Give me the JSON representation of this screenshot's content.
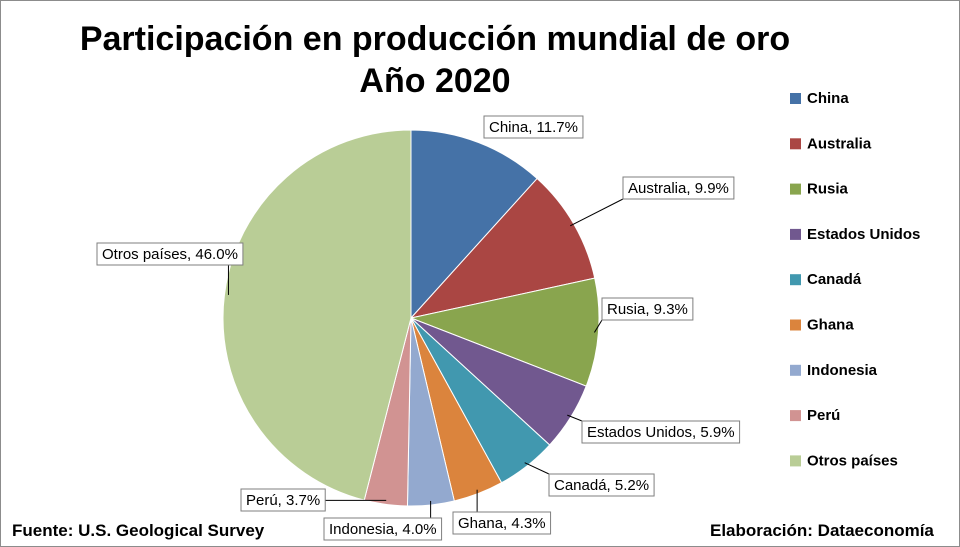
{
  "chart_data": {
    "type": "pie",
    "title": "Participación en producción mundial de oro",
    "subtitle": "Año 2020",
    "categories": [
      "China",
      "Australia",
      "Rusia",
      "Estados Unidos",
      "Canadá",
      "Ghana",
      "Indonesia",
      "Perú",
      "Otros países"
    ],
    "values": [
      11.7,
      9.9,
      9.3,
      5.9,
      5.2,
      4.3,
      4.0,
      3.7,
      46.0
    ],
    "data_labels": [
      "China, 11.7%",
      "Australia, 9.9%",
      "Rusia, 9.3%",
      "Estados Unidos, 5.9%",
      "Canadá, 5.2%",
      "Ghana, 4.3%",
      "Indonesia, 4.0%",
      "Perú, 3.7%",
      "Otros países, 46.0%"
    ],
    "colors": [
      "#4572a7",
      "#aa4643",
      "#89a54e",
      "#71588f",
      "#4198af",
      "#db843d",
      "#93a9cf",
      "#d19392",
      "#b9cd96"
    ],
    "legend": "right"
  },
  "footer": {
    "source": "Fuente: U.S. Geological Survey",
    "credit": "Elaboración: Dataeconomía"
  }
}
